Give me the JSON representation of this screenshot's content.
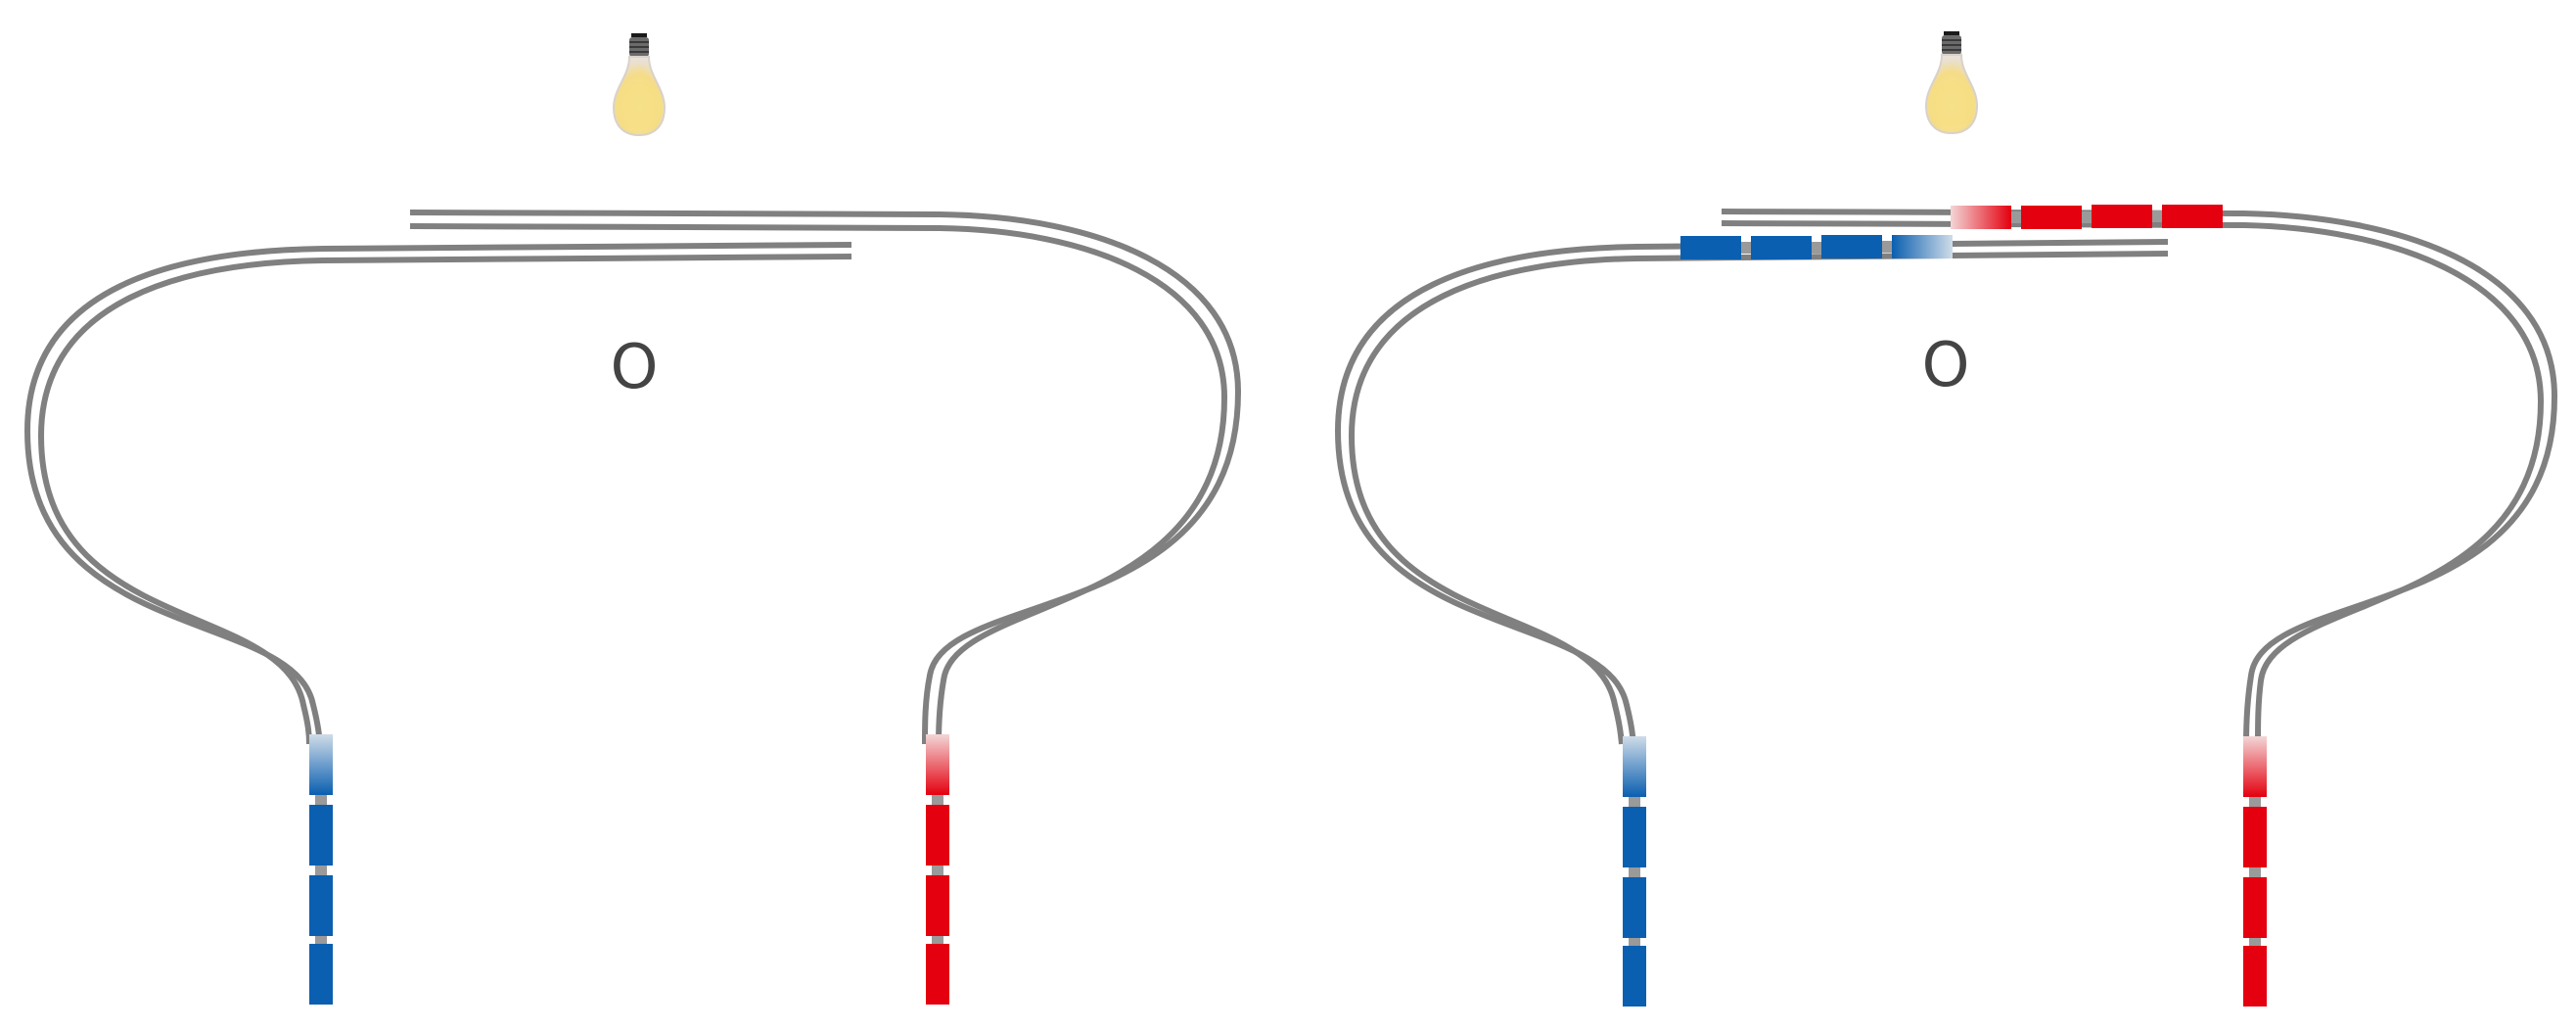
{
  "panels": [
    {
      "id": "left",
      "label": "O",
      "bulb_lit": true,
      "blue_train": {
        "position": "bottom-left-branch",
        "cars": 4
      },
      "red_train": {
        "position": "bottom-right-branch",
        "cars": 4
      }
    },
    {
      "id": "right",
      "label": "O",
      "bulb_lit": true,
      "blue_train": {
        "position": "top-lower-track",
        "cars": 4
      },
      "red_train": {
        "position": "top-upper-track",
        "cars": 4
      }
    }
  ],
  "colors": {
    "blue": "#0a5fb0",
    "red": "#e4000f",
    "rail": "#808080",
    "bulb_glass": "#f7e28f",
    "label": "#444444"
  }
}
